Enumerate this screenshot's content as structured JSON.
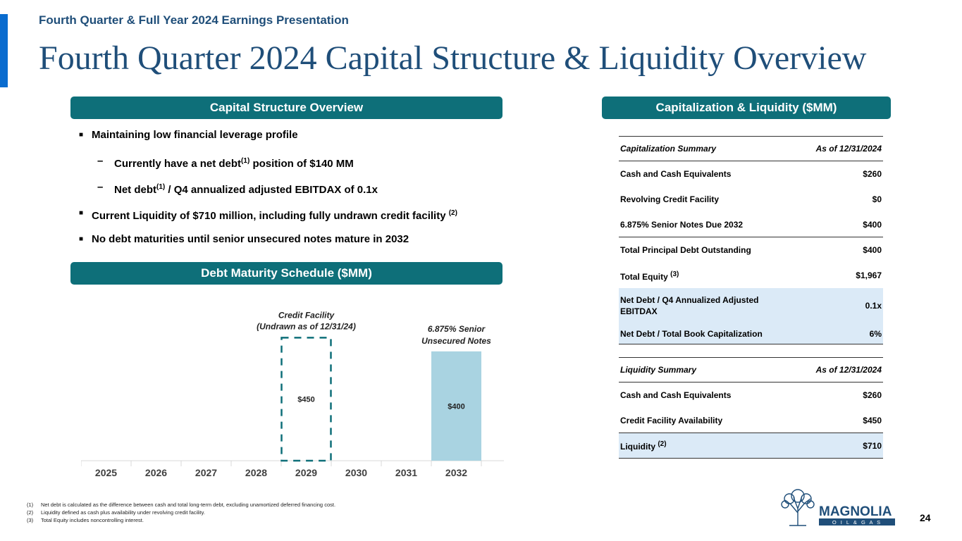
{
  "header": {
    "subtitle": "Fourth Quarter & Full Year 2024 Earnings Presentation",
    "title": "Fourth Quarter 2024 Capital Structure & Liquidity Overview"
  },
  "sections": {
    "capital_structure": "Capital Structure Overview",
    "capitalization_liquidity": "Capitalization & Liquidity ($MM)",
    "debt_maturity": "Debt Maturity Schedule ($MM)"
  },
  "bullets": {
    "b1": "Maintaining low financial leverage profile",
    "b2_pre": "Currently have a net debt",
    "b2_sup": "(1)",
    "b2_post": " position of $140 MM",
    "b3_pre": "Net debt",
    "b3_sup": "(1)",
    "b3_post": " / Q4 annualized adjusted EBITDAX of 0.1x",
    "b4_pre": "Current Liquidity of $710 million, including fully undrawn credit facility ",
    "b4_sup": "(2)",
    "b5": "No debt maturities until senior unsecured notes mature in 2032",
    "square_mark": "■",
    "dash_mark": "–"
  },
  "chart_data": {
    "type": "bar",
    "title": "Debt Maturity Schedule ($MM)",
    "categories": [
      "2025",
      "2026",
      "2027",
      "2028",
      "2029",
      "2030",
      "2031",
      "2032"
    ],
    "series": [
      {
        "name": "Credit Facility (Undrawn as of 12/31/24)",
        "style": "dashed-outline",
        "values": [
          0,
          0,
          0,
          0,
          450,
          0,
          0,
          0
        ],
        "label": "$450"
      },
      {
        "name": "6.875% Senior Unsecured Notes",
        "style": "filled",
        "values": [
          0,
          0,
          0,
          0,
          0,
          0,
          0,
          400
        ],
        "label": "$400"
      }
    ],
    "annotations": {
      "credit_facility_line1": "Credit Facility",
      "credit_facility_line2": "(Undrawn as of 12/31/24)",
      "notes_line1": "6.875% Senior",
      "notes_line2": "Unsecured Notes"
    },
    "ylim": [
      0,
      500
    ],
    "colors": {
      "filled": "#a9d3e1",
      "dashed": "#0e6f79",
      "axis": "#d9d9d9"
    }
  },
  "capitalization": {
    "header_label": "Capitalization Summary",
    "header_value": "As of 12/31/2024",
    "rows": [
      {
        "label": "Cash and Cash Equivalents",
        "value": "$260"
      },
      {
        "label": "Revolving Credit Facility",
        "value": "$0"
      },
      {
        "label": "6.875% Senior Notes Due 2032",
        "value": "$400"
      },
      {
        "label": "Total Principal Debt Outstanding",
        "value": "$400"
      },
      {
        "label": "Total Equity",
        "sup": "(3)",
        "value": "$1,967"
      },
      {
        "label": "Net Debt / Q4 Annualized Adjusted EBITDAX",
        "value": "0.1x"
      },
      {
        "label": "Net Debt / Total Book Capitalization",
        "value": "6%"
      }
    ]
  },
  "liquidity": {
    "header_label": "Liquidity Summary",
    "header_value": "As of 12/31/2024",
    "rows": [
      {
        "label": "Cash and Cash Equivalents",
        "value": "$260"
      },
      {
        "label": "Credit Facility Availability",
        "value": "$450"
      },
      {
        "label": "Liquidity",
        "sup": "(2)",
        "value": "$710"
      }
    ]
  },
  "footnotes": [
    {
      "num": "(1)",
      "text": "Net debt is calculated as the difference between cash and total long-term debt, excluding unamortized deferred financing cost."
    },
    {
      "num": "(2)",
      "text": "Liquidity defined as cash plus availability under revolving credit facility."
    },
    {
      "num": "(3)",
      "text": "Total Equity includes noncontrolling interest."
    }
  ],
  "logo": {
    "name": "MAGNOLIA",
    "sub": "O I L & G A S"
  },
  "page_number": "24"
}
